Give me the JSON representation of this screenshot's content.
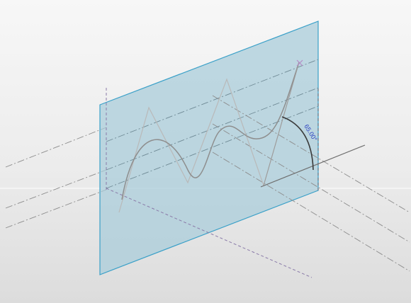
{
  "viewport": {
    "background_top": "#f7f7f7",
    "background_bottom": "#dcdcdc"
  },
  "work_plane": {
    "fill": "#a8ccd9",
    "edge_color": "#3aa0c8"
  },
  "angle_dimension": {
    "value": "65.00°",
    "color": "#2a3fc0"
  },
  "spline_endpoint_marker": {
    "icon": "x-cross-icon",
    "color": "#b48cc8"
  },
  "reference_line_color": "#8a7aa8"
}
